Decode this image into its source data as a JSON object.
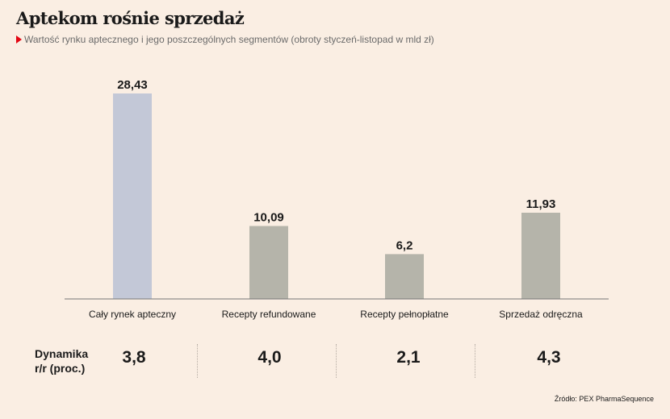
{
  "header": {
    "title": "Aptekom rośnie sprzedaż",
    "subtitle": "Wartość rynku aptecznego i jego poszczególnych segmentów (obroty styczeń-listopad w mld zł)"
  },
  "chart_data": {
    "type": "bar",
    "title": "Aptekom rośnie sprzedaż",
    "subtitle": "Wartość rynku aptecznego i jego poszczególnych segmentów (obroty styczeń-listopad w mld zł)",
    "categories": [
      "Cały rynek apteczny",
      "Recepty refundowane",
      "Recepty pełnopłatne",
      "Sprzedaż odręczna"
    ],
    "values": [
      28.43,
      10.09,
      6.2,
      11.93
    ],
    "value_labels": [
      "28,43",
      "10,09",
      "6,2",
      "11,93"
    ],
    "bar_colors": [
      "#c3c8d7",
      "#b5b4aa",
      "#b5b4aa",
      "#b5b4aa"
    ],
    "xlabel": "",
    "ylabel": "",
    "ylim": [
      0,
      28.43
    ],
    "grid": false,
    "legend": "none"
  },
  "dynamics": {
    "label": "Dynamika\nr/r (proc.)",
    "values": [
      "3,8",
      "4,0",
      "2,1",
      "4,3"
    ]
  },
  "source": "Źródło: PEX PharmaSequence",
  "colors": {
    "background": "#faeee3",
    "accent": "#e30613"
  }
}
